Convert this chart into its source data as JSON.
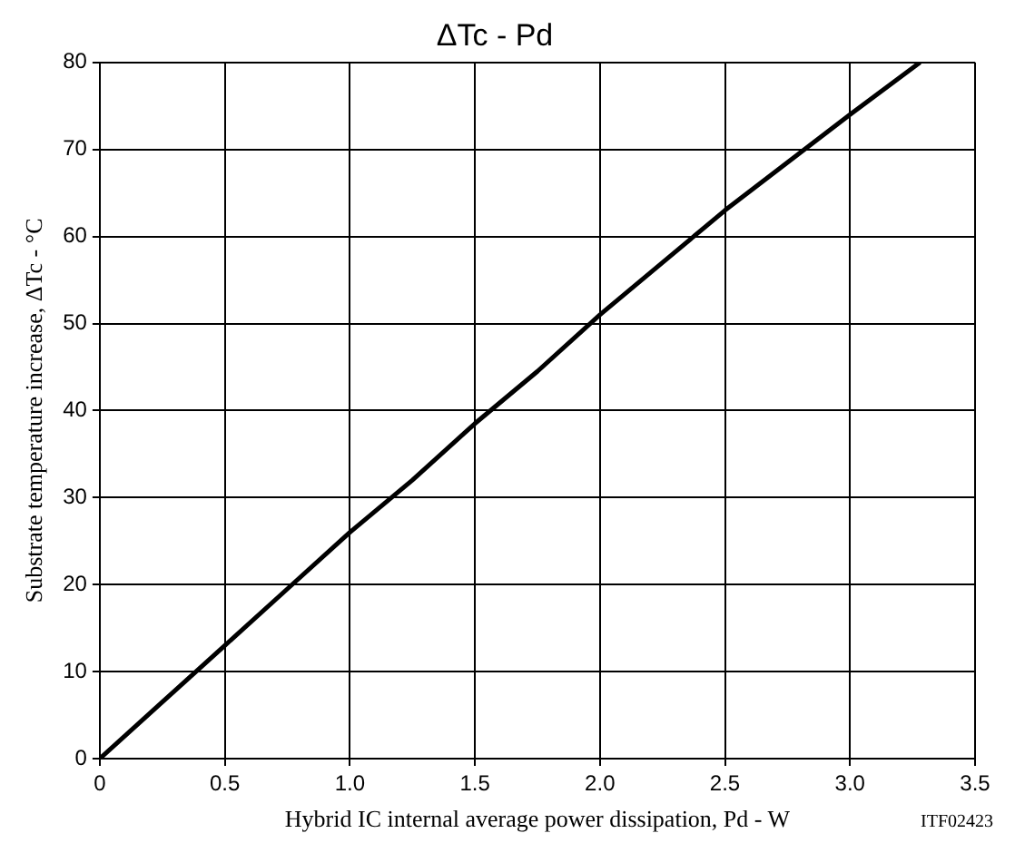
{
  "chart_data": {
    "type": "line",
    "title": "ΔTc - Pd",
    "xlabel": "Hybrid IC internal average power dissipation, Pd - W",
    "ylabel": "Substrate temperature increase, ΔTc - °C",
    "annotations": [
      "ITF02423"
    ],
    "x": [
      0,
      0.25,
      0.5,
      0.75,
      1.0,
      1.25,
      1.5,
      1.75,
      2.0,
      2.25,
      2.5,
      2.75,
      3.0,
      3.28
    ],
    "series": [
      {
        "color": "#000000",
        "values": [
          0,
          6.5,
          13,
          19.5,
          26,
          32,
          38.5,
          44.5,
          51,
          57,
          63,
          68.5,
          74,
          80
        ]
      }
    ],
    "xlim": [
      0,
      3.5
    ],
    "xticks": [
      0,
      {
        "value": 0.5,
        "label": "0.5"
      },
      {
        "value": 1,
        "label": "1.0"
      },
      {
        "value": 1.5,
        "label": "1.5"
      },
      {
        "value": 2,
        "label": "2.0"
      },
      {
        "value": 2.5,
        "label": "2.5"
      },
      {
        "value": 3,
        "label": "3.0"
      },
      {
        "value": 3.5,
        "label": "3.5"
      }
    ],
    "ylim": [
      0,
      80
    ],
    "yticks": [
      0,
      10,
      20,
      30,
      40,
      50,
      60,
      70,
      80
    ],
    "grid": true,
    "marker": "none",
    "line_style": "solid",
    "legend": false
  }
}
